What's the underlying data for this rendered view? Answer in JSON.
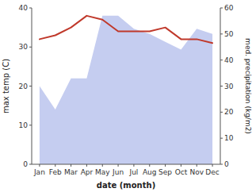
{
  "chart_data": {
    "type": "line",
    "categories": [
      "Jan",
      "Feb",
      "Mar",
      "Apr",
      "May",
      "Jun",
      "Jul",
      "Aug",
      "Sep",
      "Oct",
      "Nov",
      "Dec"
    ],
    "xlabel": "date (month)",
    "ylabel": "max temp (C)",
    "y2label": "med. precipitation (kg/m2)",
    "series": [
      {
        "type": "area",
        "axis": "y2",
        "color": "#c5cdf0",
        "values": [
          30,
          21,
          33,
          33,
          57,
          57,
          52,
          50,
          47,
          44,
          52,
          50
        ]
      },
      {
        "type": "line",
        "color": "#c0392b",
        "values": [
          32,
          33,
          35,
          38,
          37,
          34,
          34,
          34,
          35,
          32,
          32,
          31
        ]
      }
    ],
    "ylim": [
      0,
      40
    ],
    "yticks": [
      0,
      10,
      20,
      30,
      40
    ],
    "y2lim": [
      0,
      60
    ],
    "y2ticks": [
      0,
      10,
      20,
      30,
      40,
      50,
      60
    ],
    "grid": false
  }
}
